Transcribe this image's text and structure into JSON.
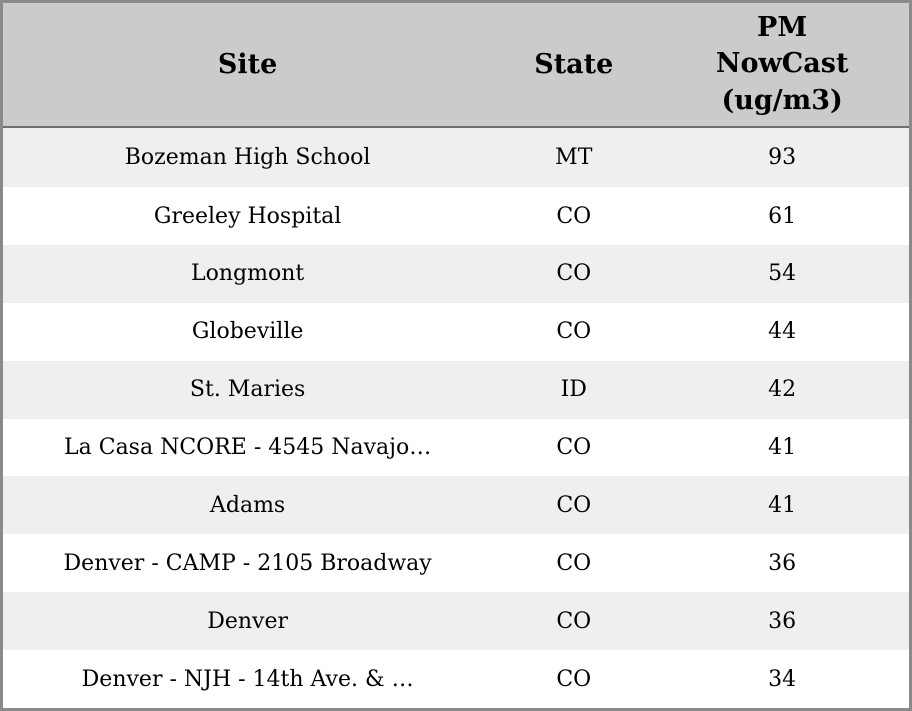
{
  "table": {
    "header": {
      "site": "Site",
      "state": "State",
      "pm": "PM\nNowCast\n(ug/m3)"
    },
    "rows": [
      {
        "site": "Bozeman High School",
        "state": "MT",
        "pm": "93"
      },
      {
        "site": "Greeley Hospital",
        "state": "CO",
        "pm": "61"
      },
      {
        "site": "Longmont",
        "state": "CO",
        "pm": "54"
      },
      {
        "site": "Globeville",
        "state": "CO",
        "pm": "44"
      },
      {
        "site": "St. Maries",
        "state": "ID",
        "pm": "42"
      },
      {
        "site": "La Casa NCORE - 4545 Navajo…",
        "state": "CO",
        "pm": "41"
      },
      {
        "site": "Adams",
        "state": "CO",
        "pm": "41"
      },
      {
        "site": "Denver - CAMP - 2105 Broadway",
        "state": "CO",
        "pm": "36"
      },
      {
        "site": "Denver",
        "state": "CO",
        "pm": "36"
      },
      {
        "site": "Denver - NJH - 14th Ave. & …",
        "state": "CO",
        "pm": "34"
      }
    ]
  },
  "colors": {
    "header_bg": "#cbcbcb",
    "row_odd_bg": "#efefef",
    "row_even_bg": "#ffffff",
    "outer_border": "#8a8a8a",
    "header_divider": "#6f6f6f",
    "text": "#000000"
  },
  "chart_data": {
    "type": "table",
    "columns": [
      "Site",
      "State",
      "PM NowCast (ug/m3)"
    ],
    "rows": [
      [
        "Bozeman High School",
        "MT",
        93
      ],
      [
        "Greeley Hospital",
        "CO",
        61
      ],
      [
        "Longmont",
        "CO",
        54
      ],
      [
        "Globeville",
        "CO",
        44
      ],
      [
        "St. Maries",
        "ID",
        42
      ],
      [
        "La Casa NCORE - 4545 Navajo…",
        "CO",
        41
      ],
      [
        "Adams",
        "CO",
        41
      ],
      [
        "Denver - CAMP - 2105 Broadway",
        "CO",
        36
      ],
      [
        "Denver",
        "CO",
        36
      ],
      [
        "Denver - NJH - 14th Ave. & …",
        "CO",
        34
      ]
    ],
    "title": "",
    "legend": "none",
    "notes": "PM NowCast air-quality readings per monitoring site, sorted descending by value"
  }
}
